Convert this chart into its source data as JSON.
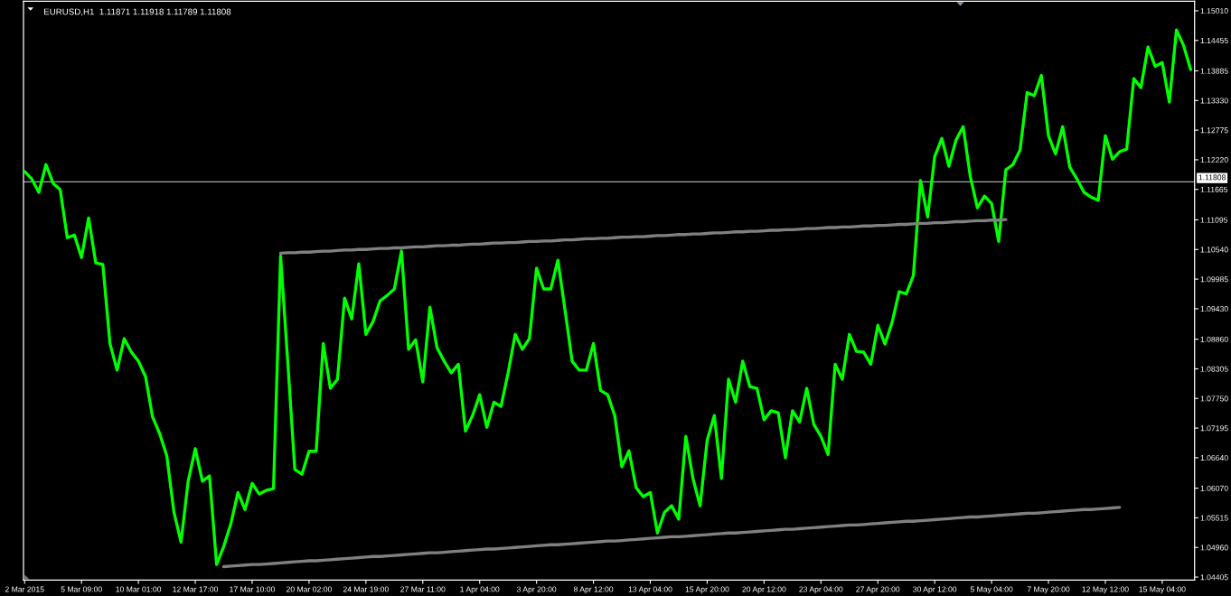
{
  "chart_data": {
    "type": "line",
    "title": "EURUSD,H1  1.11871 1.11918 1.11789 1.11808",
    "categories": [
      "2 Mar 2015",
      null,
      null,
      null,
      null,
      null,
      null,
      null,
      "5 Mar 09:00",
      null,
      null,
      null,
      null,
      null,
      null,
      null,
      "10 Mar 01:00",
      null,
      null,
      null,
      null,
      null,
      null,
      null,
      "12 Mar 17:00",
      null,
      null,
      null,
      null,
      null,
      null,
      null,
      "17 Mar 10:00",
      null,
      null,
      null,
      null,
      null,
      null,
      null,
      "20 Mar 02:00",
      null,
      null,
      null,
      null,
      null,
      null,
      null,
      "24 Mar 19:00",
      null,
      null,
      null,
      null,
      null,
      null,
      null,
      "27 Mar 11:00",
      null,
      null,
      null,
      null,
      null,
      null,
      null,
      "1 Apr 04:00",
      null,
      null,
      null,
      null,
      null,
      null,
      null,
      "3 Apr 20:00",
      null,
      null,
      null,
      null,
      null,
      null,
      null,
      "8 Apr 12:00",
      null,
      null,
      null,
      null,
      null,
      null,
      null,
      "13 Apr 04:00",
      null,
      null,
      null,
      null,
      null,
      null,
      null,
      "15 Apr 20:00",
      null,
      null,
      null,
      null,
      null,
      null,
      null,
      "20 Apr 12:00",
      null,
      null,
      null,
      null,
      null,
      null,
      null,
      "23 Apr 04:00",
      null,
      null,
      null,
      null,
      null,
      null,
      null,
      "27 Apr 20:00",
      null,
      null,
      null,
      null,
      null,
      null,
      null,
      "30 Apr 12:00",
      null,
      null,
      null,
      null,
      null,
      null,
      null,
      "5 May 04:00",
      null,
      null,
      null,
      null,
      null,
      null,
      null,
      "7 May 20:00",
      null,
      null,
      null,
      null,
      null,
      null,
      null,
      "12 May 12:00",
      null,
      null,
      null,
      null,
      null,
      null,
      null,
      "15 May 04:00",
      null,
      null,
      null,
      null
    ],
    "ylim": [
      1.0435,
      1.1519
    ],
    "yticks": [
      1.04405,
      {
        "value": 1.0496,
        "label": "1.04960"
      },
      1.05515,
      {
        "value": 1.0607,
        "label": "1.06070"
      },
      {
        "value": 1.0664,
        "label": "1.06640"
      },
      1.07195,
      {
        "value": 1.0775,
        "label": "1.07750"
      },
      1.08305,
      {
        "value": 1.0886,
        "label": "1.08860"
      },
      {
        "value": 1.0943,
        "label": "1.09430"
      },
      1.09985,
      {
        "value": 1.1054,
        "label": "1.10540"
      },
      1.11095,
      1.11665,
      {
        "value": 1.1222,
        "label": "1.12220"
      },
      1.12775,
      {
        "value": 1.1333,
        "label": "1.13330"
      },
      1.13885,
      1.14455,
      {
        "value": 1.1501,
        "label": "1.15010"
      }
    ],
    "ref_lines": [
      {
        "axis": "y",
        "value": 1.11808,
        "label": "1.11808",
        "color": "#a9a9a9"
      }
    ],
    "series": [
      {
        "color": "#00ff00",
        "values": [
          1.12,
          1.1186,
          1.1161,
          1.1213,
          1.1178,
          1.1166,
          1.1076,
          1.1081,
          1.1039,
          1.1113,
          1.1029,
          1.1026,
          1.0878,
          1.0828,
          1.0887,
          1.0862,
          1.0845,
          1.0816,
          1.074,
          1.0709,
          1.0667,
          1.0562,
          1.0506,
          1.062,
          1.0681,
          1.062,
          1.063,
          1.0464,
          1.0498,
          1.054,
          1.0599,
          1.0567,
          1.0616,
          1.0596,
          1.0603,
          1.0606,
          1.1042,
          1.0845,
          1.0642,
          1.0633,
          1.0676,
          1.0676,
          1.0878,
          1.0794,
          1.0811,
          1.0963,
          1.0924,
          1.1027,
          1.0895,
          1.0919,
          1.0958,
          1.0968,
          1.098,
          1.1051,
          1.0867,
          1.0885,
          1.0806,
          1.0946,
          1.087,
          1.0845,
          1.0823,
          1.0839,
          1.0714,
          1.0743,
          1.0782,
          1.0721,
          1.0768,
          1.076,
          1.0823,
          1.0895,
          1.0867,
          1.0887,
          1.1019,
          1.098,
          1.098,
          1.1034,
          1.0941,
          1.0845,
          1.0828,
          1.0828,
          1.0878,
          1.079,
          1.0782,
          1.0743,
          1.0647,
          1.0677,
          1.0608,
          1.0591,
          1.0599,
          1.0523,
          1.0562,
          1.0574,
          1.0549,
          1.0704,
          1.0625,
          1.0574,
          1.0697,
          1.0743,
          1.0625,
          1.0811,
          1.0768,
          1.0845,
          1.0797,
          1.0794,
          1.0735,
          1.0752,
          1.0748,
          1.0664,
          1.0752,
          1.0731,
          1.0794,
          1.0726,
          1.0704,
          1.067,
          1.0839,
          1.0811,
          1.0895,
          1.0863,
          1.0862,
          1.0839,
          1.0912,
          1.0877,
          1.0917,
          1.0975,
          1.0971,
          1.1005,
          1.1183,
          1.1115,
          1.1228,
          1.1262,
          1.121,
          1.1259,
          1.1284,
          1.1191,
          1.1132,
          1.1154,
          1.114,
          1.1069,
          1.1203,
          1.1213,
          1.124,
          1.1348,
          1.1342,
          1.138,
          1.1267,
          1.1233,
          1.1284,
          1.1208,
          1.1186,
          1.1161,
          1.1152,
          1.1146,
          1.1267,
          1.1223,
          1.1237,
          1.1242,
          1.1374,
          1.1357,
          1.1433,
          1.1397,
          1.1404,
          1.133,
          1.1465,
          1.1436,
          1.1391
        ]
      },
      {
        "type": "line",
        "color": "#808080",
        "values": [
          null,
          null,
          null,
          null,
          null,
          null,
          null,
          null,
          null,
          null,
          null,
          null,
          null,
          null,
          null,
          null,
          null,
          null,
          null,
          null,
          null,
          null,
          null,
          null,
          null,
          null,
          null,
          null,
          null,
          null,
          null,
          null,
          null,
          null,
          null,
          null,
          1.1047,
          1.1048,
          1.1048,
          1.1049,
          1.1049,
          1.105,
          1.1051,
          1.1051,
          1.1052,
          1.1053,
          1.1053,
          1.1054,
          1.1054,
          1.1055,
          1.1056,
          1.1056,
          1.1057,
          1.1057,
          1.1058,
          1.1059,
          1.1059,
          1.106,
          1.1061,
          1.1061,
          1.1062,
          1.1062,
          1.1063,
          1.1064,
          1.1064,
          1.1065,
          1.1066,
          1.1066,
          1.1067,
          1.1067,
          1.1068,
          1.1069,
          1.1069,
          1.107,
          1.107,
          1.1071,
          1.1072,
          1.1072,
          1.1073,
          1.1074,
          1.1074,
          1.1075,
          1.1075,
          1.1076,
          1.1077,
          1.1077,
          1.1078,
          1.1078,
          1.1079,
          1.108,
          1.108,
          1.1081,
          1.1082,
          1.1082,
          1.1083,
          1.1083,
          1.1084,
          1.1085,
          1.1085,
          1.1086,
          1.1087,
          1.1087,
          1.1088,
          1.1088,
          1.1089,
          1.109,
          1.109,
          1.1091,
          1.1091,
          1.1092,
          1.1093,
          1.1093,
          1.1094,
          1.1095,
          1.1095,
          1.1096,
          1.1096,
          1.1097,
          1.1098,
          1.1098,
          1.1099,
          1.1099,
          1.11,
          1.1101,
          1.1101,
          1.1102,
          1.1103,
          1.1103,
          1.1104,
          1.1104,
          1.1105,
          1.1106,
          1.1106,
          1.1107,
          1.1108,
          1.1108,
          1.1109,
          1.1109,
          1.111,
          null,
          null,
          null,
          null,
          null,
          null,
          null,
          null,
          null,
          null,
          null,
          null,
          null,
          null,
          null,
          null,
          null,
          null,
          null,
          null,
          null,
          null,
          null,
          null,
          null,
          null
        ]
      },
      {
        "type": "line",
        "color": "#808080",
        "values": [
          null,
          null,
          null,
          null,
          null,
          null,
          null,
          null,
          null,
          null,
          null,
          null,
          null,
          null,
          null,
          null,
          null,
          null,
          null,
          null,
          null,
          null,
          null,
          null,
          null,
          null,
          null,
          null,
          1.046,
          1.0461,
          1.0462,
          1.0463,
          1.0464,
          1.0464,
          1.0465,
          1.0466,
          1.0467,
          1.0468,
          1.0469,
          1.047,
          1.0471,
          1.0471,
          1.0472,
          1.0473,
          1.0474,
          1.0475,
          1.0476,
          1.0477,
          1.0478,
          1.0479,
          1.0479,
          1.048,
          1.0481,
          1.0482,
          1.0483,
          1.0484,
          1.0485,
          1.0486,
          1.0486,
          1.0487,
          1.0488,
          1.0489,
          1.049,
          1.0491,
          1.0492,
          1.0493,
          1.0493,
          1.0494,
          1.0495,
          1.0496,
          1.0497,
          1.0498,
          1.0499,
          1.05,
          1.0501,
          1.0501,
          1.0502,
          1.0503,
          1.0504,
          1.0505,
          1.0506,
          1.0507,
          1.0508,
          1.0508,
          1.0509,
          1.051,
          1.0511,
          1.0512,
          1.0513,
          1.0514,
          1.0515,
          1.0516,
          1.0516,
          1.0517,
          1.0518,
          1.0519,
          1.052,
          1.0521,
          1.0522,
          1.0523,
          1.0523,
          1.0524,
          1.0525,
          1.0526,
          1.0527,
          1.0528,
          1.0529,
          1.053,
          1.053,
          1.0531,
          1.0532,
          1.0533,
          1.0534,
          1.0535,
          1.0536,
          1.0537,
          1.0538,
          1.0538,
          1.0539,
          1.054,
          1.0541,
          1.0542,
          1.0543,
          1.0544,
          1.0545,
          1.0545,
          1.0546,
          1.0547,
          1.0548,
          1.0549,
          1.055,
          1.0551,
          1.0552,
          1.0553,
          1.0553,
          1.0554,
          1.0555,
          1.0556,
          1.0557,
          1.0558,
          1.0559,
          1.056,
          1.056,
          1.0561,
          1.0562,
          1.0563,
          1.0564,
          1.0565,
          1.0566,
          1.0567,
          1.0567,
          1.0568,
          1.0569,
          1.057,
          1.0571,
          null,
          null,
          null,
          null,
          null,
          null,
          null,
          null,
          null,
          null
        ]
      }
    ]
  }
}
